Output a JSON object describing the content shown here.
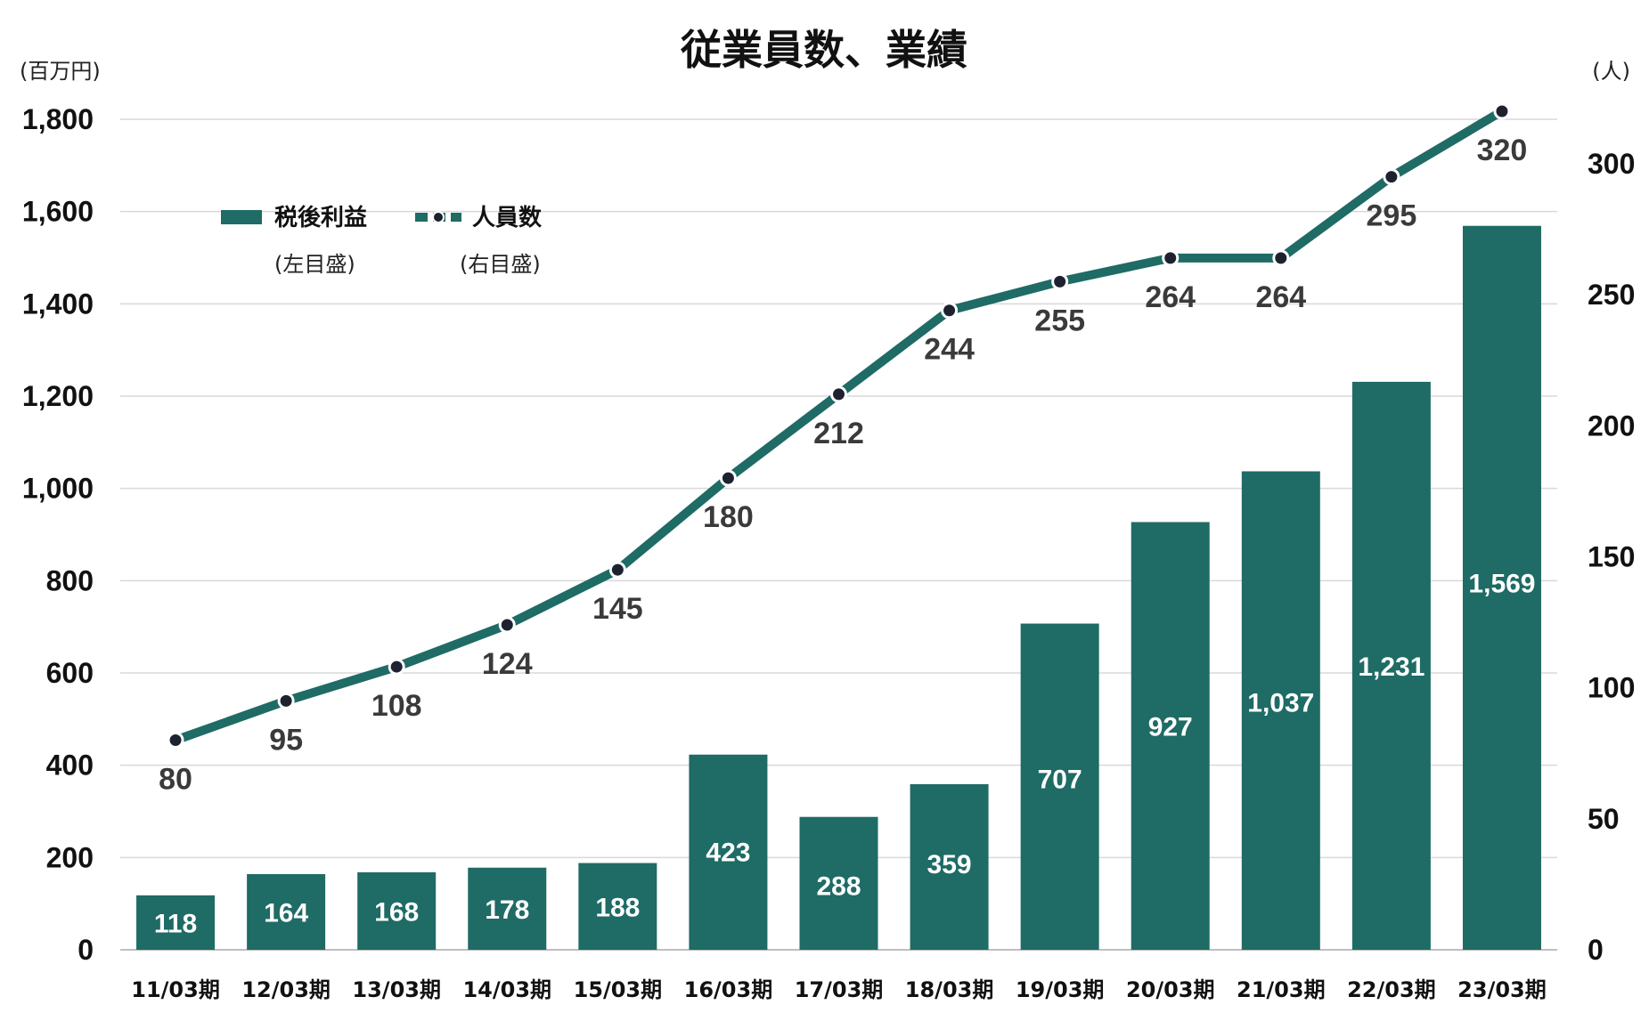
{
  "chart_data": {
    "type": "bar",
    "title": "従業員数、業績",
    "left_axis_unit": "(百万円)",
    "right_axis_unit": "(人)",
    "categories": [
      "11/03期",
      "12/03期",
      "13/03期",
      "14/03期",
      "15/03期",
      "16/03期",
      "17/03期",
      "18/03期",
      "19/03期",
      "20/03期",
      "21/03期",
      "22/03期",
      "23/03期"
    ],
    "left_ylim": [
      0,
      1800
    ],
    "left_yticks": [
      "0",
      "200",
      "400",
      "600",
      "800",
      "1,000",
      "1,200",
      "1,400",
      "1,600",
      "1,800"
    ],
    "right_ylim": [
      0,
      320
    ],
    "right_yticks": [
      "0",
      "50",
      "100",
      "150",
      "200",
      "250",
      "300"
    ],
    "grid": true,
    "legend_position": "top-left",
    "series": [
      {
        "name": "税後利益",
        "axis_note": "(左目盛)",
        "type": "bar",
        "axis": "left",
        "color": "#1f6b65",
        "values": [
          118,
          164,
          168,
          178,
          188,
          423,
          288,
          359,
          707,
          927,
          1037,
          1231,
          1569
        ],
        "labels": [
          "118",
          "164",
          "168",
          "178",
          "188",
          "423",
          "288",
          "359",
          "707",
          "927",
          "1,037",
          "1,231",
          "1,569"
        ]
      },
      {
        "name": "人員数",
        "axis_note": "(右目盛)",
        "type": "line",
        "axis": "right",
        "color": "#1f6b65",
        "marker_color": "#1e2230",
        "values": [
          80,
          95,
          108,
          124,
          145,
          180,
          212,
          244,
          255,
          264,
          264,
          295,
          320
        ],
        "labels": [
          "80",
          "95",
          "108",
          "124",
          "145",
          "180",
          "212",
          "244",
          "255",
          "264",
          "264",
          "295",
          "320"
        ]
      }
    ]
  }
}
